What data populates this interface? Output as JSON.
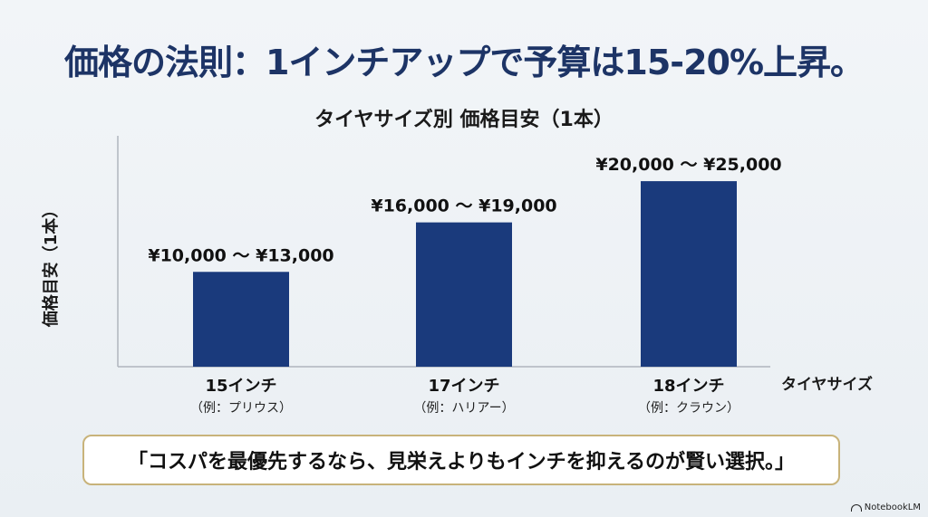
{
  "headline": "価格の法則：1インチアップで予算は15-20%上昇。",
  "callout": "「コスパを最優先するなら、見栄えよりもインチを抑えるのが賢い選択。」",
  "brand": "NotebookLM",
  "colors": {
    "bar": "#1a3a7c",
    "headline": "#1d3466",
    "callout_border": "#c8b37a",
    "axis": "#b0b6bd"
  },
  "chart_data": {
    "type": "bar",
    "title": "タイヤサイズ別 価格目安（1本）",
    "xlabel": "タイヤサイズ",
    "ylabel": "価格目安（1本）",
    "categories": [
      "15インチ",
      "17インチ",
      "18インチ"
    ],
    "category_notes": [
      "（例：プリウス）",
      "（例：ハリアー）",
      "（例：クラウン）"
    ],
    "ranges": [
      [
        10000,
        13000
      ],
      [
        16000,
        19000
      ],
      [
        20000,
        25000
      ]
    ],
    "values": [
      11500,
      17500,
      22500
    ],
    "data_labels": [
      "¥10,000 ～ ¥13,000",
      "¥16,000 ～ ¥19,000",
      "¥20,000 ～ ¥25,000"
    ],
    "ylim": [
      0,
      28000
    ],
    "grid": false,
    "legend": "none"
  }
}
